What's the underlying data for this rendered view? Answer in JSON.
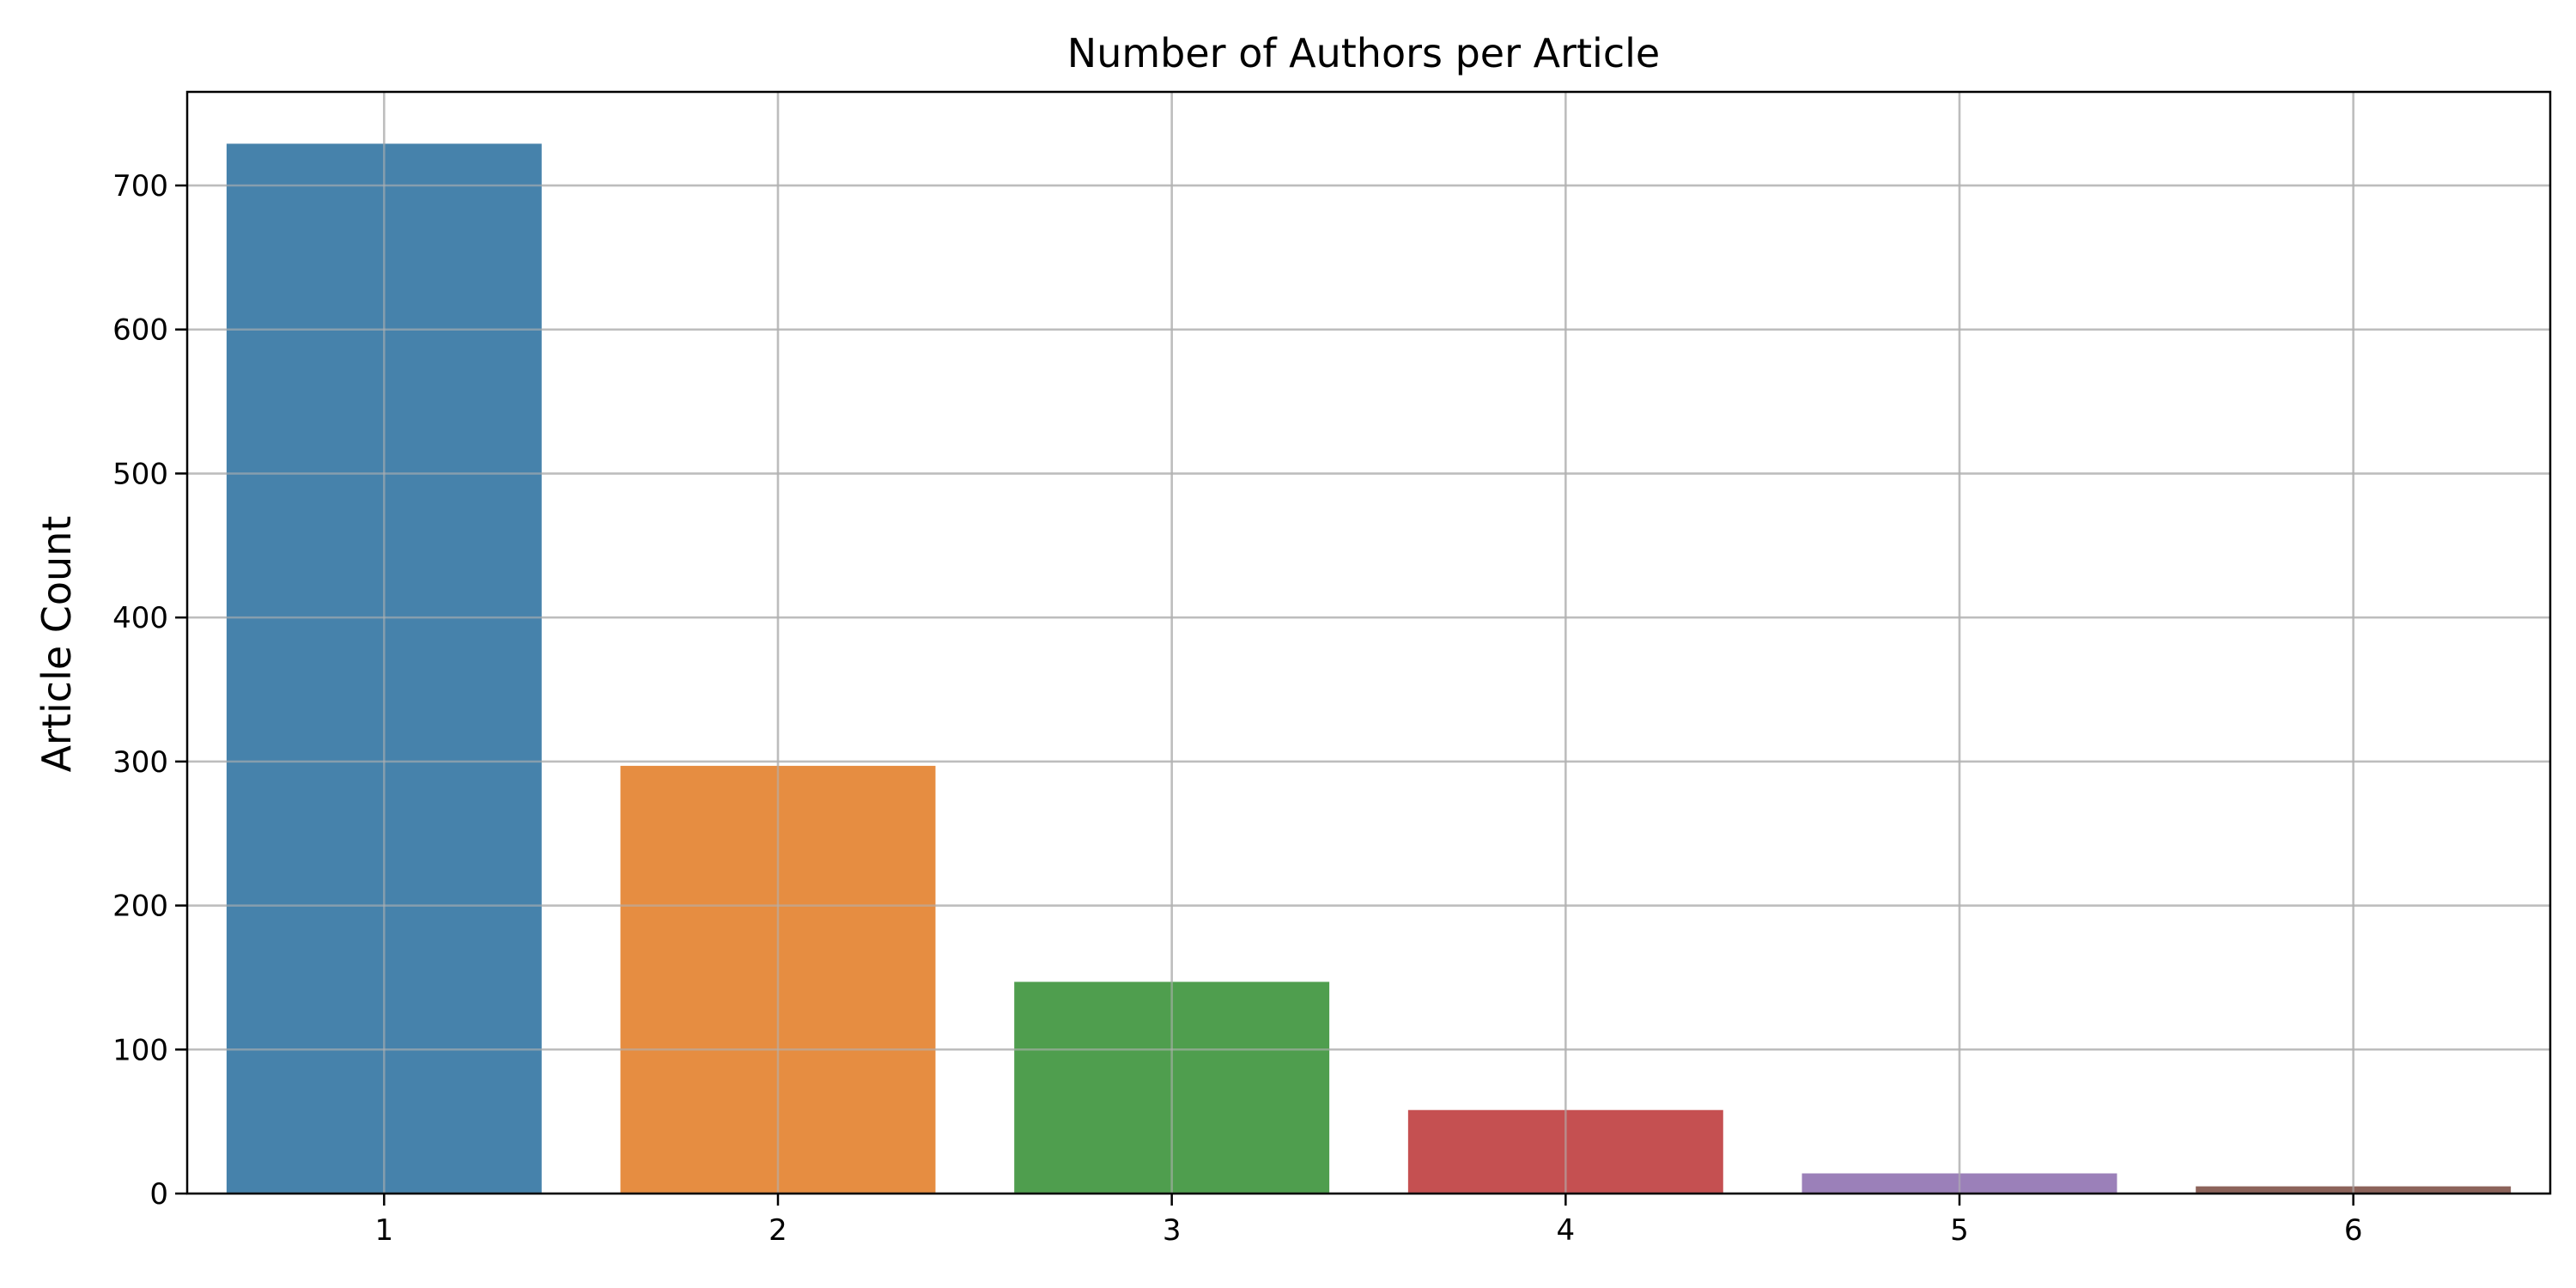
{
  "chart_data": {
    "type": "bar",
    "title": "Number of Authors per Article",
    "xlabel": "",
    "ylabel": "Article Count",
    "categories": [
      "1",
      "2",
      "3",
      "4",
      "5",
      "6"
    ],
    "values": [
      729,
      297,
      147,
      58,
      14,
      5
    ],
    "colors": [
      "#4682ab",
      "#e68d41",
      "#4f9e4e",
      "#c55051",
      "#9b80b9",
      "#8c635a"
    ],
    "ylim": [
      0,
      765
    ],
    "yticks": [
      0,
      100,
      200,
      300,
      400,
      500,
      600,
      700
    ],
    "grid": true,
    "legend": "none"
  }
}
